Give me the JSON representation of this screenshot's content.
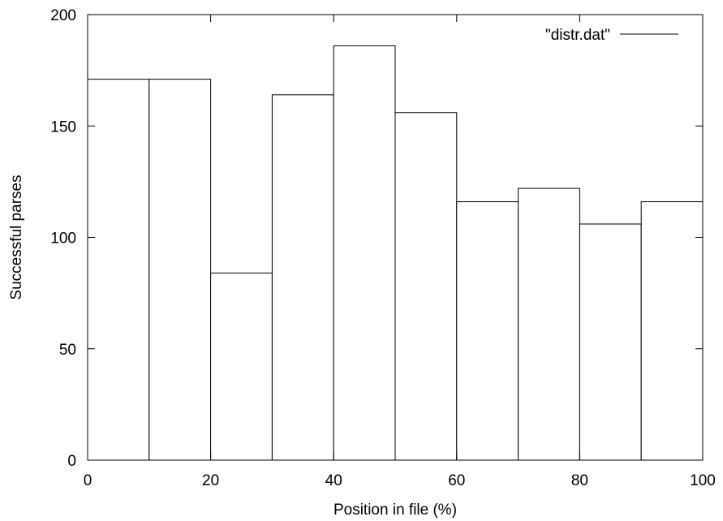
{
  "chart_data": {
    "type": "bar",
    "bins": [
      {
        "x_start": 0,
        "x_end": 10,
        "value": 171
      },
      {
        "x_start": 10,
        "x_end": 20,
        "value": 171
      },
      {
        "x_start": 20,
        "x_end": 30,
        "value": 84
      },
      {
        "x_start": 30,
        "x_end": 40,
        "value": 164
      },
      {
        "x_start": 40,
        "x_end": 50,
        "value": 186
      },
      {
        "x_start": 50,
        "x_end": 60,
        "value": 156
      },
      {
        "x_start": 60,
        "x_end": 70,
        "value": 116
      },
      {
        "x_start": 70,
        "x_end": 80,
        "value": 122
      },
      {
        "x_start": 80,
        "x_end": 90,
        "value": 106
      },
      {
        "x_start": 90,
        "x_end": 100,
        "value": 116
      }
    ],
    "series": [
      {
        "name": "\"distr.dat\"",
        "color": "#000000"
      }
    ],
    "title": "",
    "xlabel": "Position in file (%)",
    "ylabel": "Successful parses",
    "xlim": [
      0,
      100
    ],
    "ylim": [
      0,
      200
    ],
    "x_ticks": [
      0,
      20,
      40,
      60,
      80,
      100
    ],
    "y_ticks": [
      0,
      50,
      100,
      150,
      200
    ],
    "grid": false,
    "legend_position": "top-right",
    "bar_fill": "#ffffff",
    "bar_stroke": "#000000"
  }
}
